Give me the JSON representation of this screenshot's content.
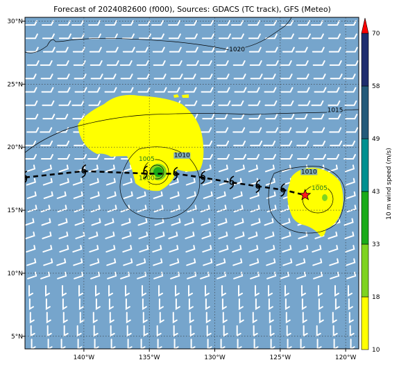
{
  "title": "Forecast of 2024082600 (f000), Sources: GDACS (TC track), GFS (Meteo)",
  "map": {
    "ocean_color": "#76a5cc",
    "lon_range": [
      -144.5,
      -119
    ],
    "lat_range": [
      4,
      30.3
    ],
    "x_ticks": [
      {
        "lon": -140,
        "label": "140°W"
      },
      {
        "lon": -135,
        "label": "135°W"
      },
      {
        "lon": -130,
        "label": "130°W"
      },
      {
        "lon": -125,
        "label": "125°W"
      },
      {
        "lon": -120,
        "label": "120°W"
      }
    ],
    "y_ticks": [
      {
        "lat": 30,
        "label": "30°N"
      },
      {
        "lat": 25,
        "label": "25°N"
      },
      {
        "lat": 20,
        "label": "20°N"
      },
      {
        "lat": 15,
        "label": "15°N"
      },
      {
        "lat": 10,
        "label": "10°N"
      },
      {
        "lat": 5,
        "label": "5°N"
      }
    ],
    "grid": true
  },
  "isobars": [
    {
      "label": "1020",
      "lon": -128.3,
      "lat": 27.6
    },
    {
      "label": "1015",
      "lon": -120.8,
      "lat": 22.8
    },
    {
      "label": "1010",
      "lon": -132.5,
      "lat": 19.2
    },
    {
      "label": "1010",
      "lon": -122.8,
      "lat": 17.9
    },
    {
      "label": "1005",
      "lon": -135.2,
      "lat": 18.9
    },
    {
      "label": "1000",
      "lon": -135.2,
      "lat": 17.4
    },
    {
      "label": "1005",
      "lon": -122.0,
      "lat": 16.6
    }
  ],
  "track": [
    {
      "lon": -144.5,
      "lat": 17.6
    },
    {
      "lon": -140.0,
      "lat": 18.1
    },
    {
      "lon": -135.0,
      "lat": 17.9
    },
    {
      "lon": -133.0,
      "lat": 17.9
    },
    {
      "lon": -131.0,
      "lat": 17.6
    },
    {
      "lon": -128.7,
      "lat": 17.2
    },
    {
      "lon": -126.7,
      "lat": 16.9
    },
    {
      "lon": -124.7,
      "lat": 16.6
    },
    {
      "lon": -123.1,
      "lat": 16.2
    }
  ],
  "track_symbols": [
    {
      "lon": -144.5,
      "lat": 17.6
    },
    {
      "lon": -140.0,
      "lat": 18.1
    },
    {
      "lon": -135.3,
      "lat": 18.0
    },
    {
      "lon": -133.0,
      "lat": 17.9
    },
    {
      "lon": -130.9,
      "lat": 17.6
    },
    {
      "lon": -128.7,
      "lat": 17.2
    },
    {
      "lon": -126.7,
      "lat": 16.9
    },
    {
      "lon": -124.8,
      "lat": 16.6
    }
  ],
  "current_position": {
    "lon": -123.1,
    "lat": 16.2
  },
  "colorbar": {
    "label": "10 m wind speed (m/s)",
    "levels": [
      {
        "label": "10",
        "color": "#ffff00"
      },
      {
        "label": "18",
        "color": "#7ed321"
      },
      {
        "label": "33",
        "color": "#1aaa1a"
      },
      {
        "label": "43",
        "color": "#009090"
      },
      {
        "label": "49",
        "color": "#235a7a"
      },
      {
        "label": "58",
        "color": "#1e2d6e"
      },
      {
        "label": "70",
        "color": "#ff0000"
      }
    ]
  }
}
